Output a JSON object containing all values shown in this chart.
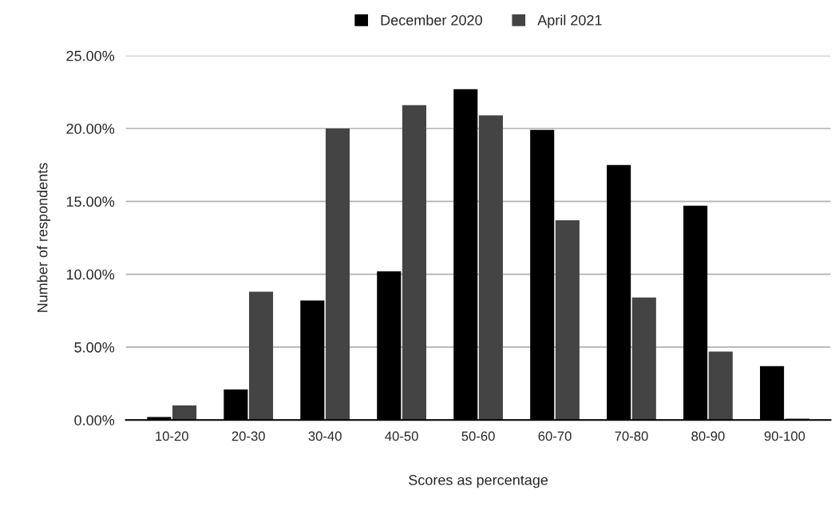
{
  "chart_data": {
    "type": "bar",
    "xlabel": "Scores as percentage",
    "ylabel": "Number of respondents",
    "categories": [
      "10-20",
      "20-30",
      "30-40",
      "40-50",
      "50-60",
      "60-70",
      "70-80",
      "80-90",
      "90-100"
    ],
    "series": [
      {
        "name": "December 2020",
        "color": "#000000",
        "values": [
          0.2,
          2.1,
          8.2,
          10.2,
          22.7,
          19.9,
          17.5,
          14.7,
          3.7
        ]
      },
      {
        "name": "April 2021",
        "color": "#444444",
        "values": [
          1.0,
          8.8,
          20.0,
          21.6,
          20.9,
          13.7,
          8.4,
          4.7,
          0.1
        ]
      }
    ],
    "ylim": [
      0,
      25
    ],
    "yticks": [
      {
        "value": 0,
        "label": "0.00%"
      },
      {
        "value": 5,
        "label": "5.00%"
      },
      {
        "value": 10,
        "label": "10.00%"
      },
      {
        "value": 15,
        "label": "15.00%"
      },
      {
        "value": 20,
        "label": "20.00%"
      },
      {
        "value": 25,
        "label": "25.00%"
      }
    ],
    "grid": "y",
    "legend": "top"
  }
}
